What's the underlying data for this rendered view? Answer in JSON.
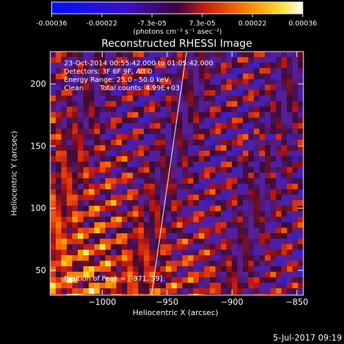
{
  "colorbar": {
    "ticks": [
      "-0.00036",
      "-0.00022",
      "-7.3e-05",
      "7.3e-05",
      "0.00022",
      "0.00036"
    ],
    "unit_label": "(photons cm⁻² s⁻¹ asec⁻²)",
    "range": [
      -0.00036,
      0.00036
    ]
  },
  "chart_data": {
    "type": "heatmap",
    "title": "Reconstructed RHESSI Image",
    "xlabel": "Heliocentric X (arcsec)",
    "ylabel": "Heliocentric Y (arcsec)",
    "xlim": [
      -1040,
      -845
    ],
    "ylim": [
      30,
      226
    ],
    "x_ticks": [
      -1000,
      -950,
      -900,
      -850
    ],
    "y_ticks": [
      50,
      100,
      150,
      200
    ],
    "x_tick_labels": [
      "−1000",
      "−950",
      "−900",
      "−850"
    ],
    "y_tick_labels": [
      "50",
      "100",
      "150",
      "200"
    ],
    "annotations": [
      "23-Oct-2014 00:55:42.000 to 01:05:42.000",
      "Detectors: 3F 6F 9F, Att 0",
      "Energy Range: 25.0 - 50.0 keV",
      "Clean",
      "Total counts: 4.99E+03"
    ],
    "peak_label": "Position of Peak = [-971, 39]",
    "limb_line": {
      "x": [
        -962,
        -935
      ],
      "y": [
        30,
        226
      ]
    },
    "colormap": "blue-purple-red-yellow-white"
  },
  "footer": {
    "timestamp": "5-Jul-2017 09:19"
  }
}
